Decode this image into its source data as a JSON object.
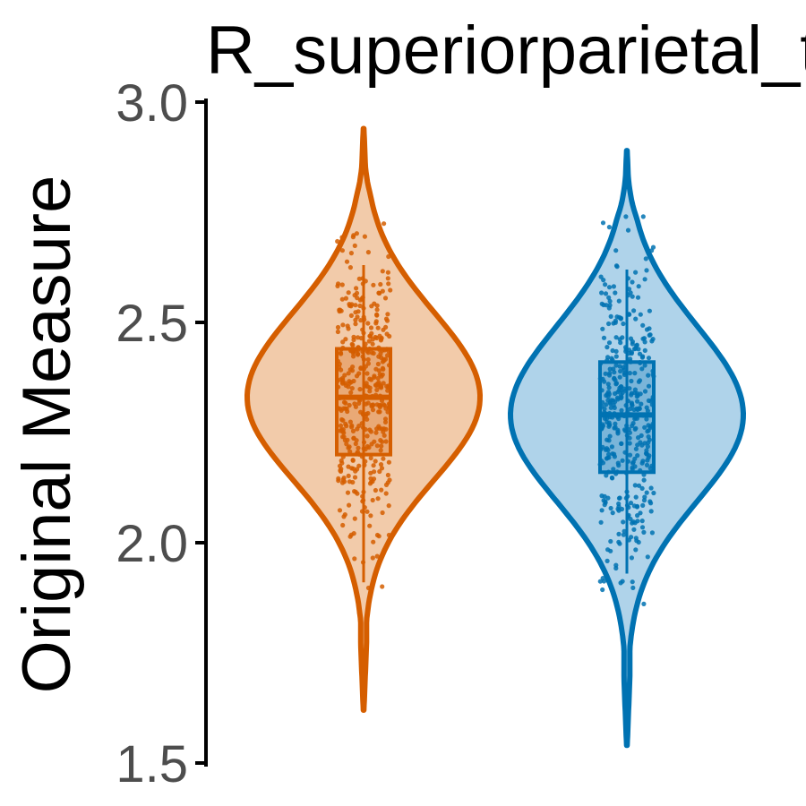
{
  "chart_data": {
    "type": "violin",
    "title": "R_superiorparietal_t",
    "xlabel": "",
    "ylabel": "Original Measure",
    "ylim": [
      1.5,
      3.0
    ],
    "yticks": [
      "1.5",
      "2.0",
      "2.5",
      "3.0"
    ],
    "grid": false,
    "legend": "none",
    "series": [
      {
        "color": "#D55E00",
        "fill": "#F2CBAA",
        "violin_min": 1.62,
        "violin_max": 2.94,
        "box": {
          "whisker_low": 1.91,
          "q1": 2.2,
          "median": 2.33,
          "q3": 2.44,
          "whisker_high": 2.63
        },
        "points_n": 420
      },
      {
        "color": "#0072B2",
        "fill": "#AFD3EA",
        "violin_min": 1.54,
        "violin_max": 2.89,
        "box": {
          "whisker_low": 1.93,
          "q1": 2.16,
          "median": 2.29,
          "q3": 2.41,
          "whisker_high": 2.62
        },
        "points_n": 420
      }
    ]
  }
}
